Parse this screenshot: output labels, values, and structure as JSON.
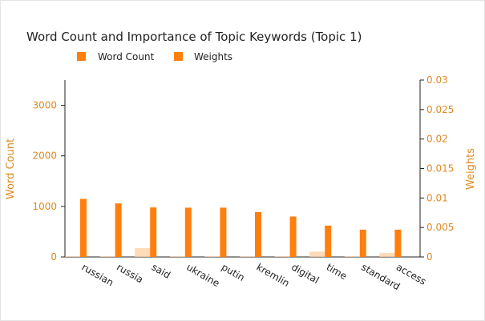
{
  "chart_data": {
    "type": "bar",
    "title": "Word Count and Importance of Topic Keywords (Topic 1)",
    "categories": [
      "russian",
      "russia",
      "said",
      "ukraine",
      "putin",
      "kremlin",
      "digital",
      "time",
      "standard",
      "access"
    ],
    "series": [
      {
        "name": "Word Count",
        "axis": "left",
        "color": "#ff7f0e",
        "values": [
          1150,
          1060,
          980,
          975,
          975,
          890,
          800,
          620,
          540,
          540
        ]
      },
      {
        "name": "Weights",
        "axis": "right",
        "color": "#ffcfa0",
        "values": [
          0.0001,
          0.0001,
          0.0015,
          0.0001,
          0.0001,
          0.0001,
          0.0001,
          0.0009,
          0.0001,
          0.0007
        ]
      }
    ],
    "ylabel": "Word Count",
    "ylabel_right": "Weights",
    "ylim": [
      0,
      3500
    ],
    "ylim_right": [
      0,
      0.03
    ],
    "yticks": [
      "0",
      "1000",
      "2000",
      "3000"
    ],
    "yticks_right": [
      "0",
      "0.005",
      "0.01",
      "0.015",
      "0.02",
      "0.025",
      "0.03"
    ],
    "grid": false,
    "legend_position": "top-left"
  }
}
